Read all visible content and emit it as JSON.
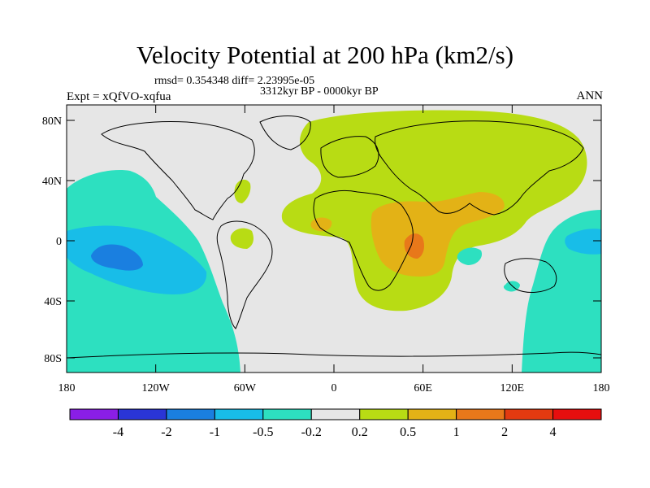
{
  "title": "Velocity Potential at 200 hPa (km2/s)",
  "stats": "rmsd= 0.354348 diff= 2.23995e-05",
  "period": "3312kyr BP - 0000kyr BP",
  "experiment": "Expt = xQfVO-xqfua",
  "season": "ANN",
  "lat_ticks": [
    "80N",
    "40N",
    "0",
    "40S",
    "80S"
  ],
  "lon_ticks": [
    "180",
    "120W",
    "60W",
    "0",
    "60E",
    "120E",
    "180"
  ],
  "colorbar": {
    "labels": [
      "-4",
      "-2",
      "-1",
      "-0.5",
      "-0.2",
      "0.2",
      "0.5",
      "1",
      "2",
      "4"
    ],
    "colors": [
      "#8a1ee6",
      "#2a35d6",
      "#1a7fe0",
      "#18bde8",
      "#2de0c0",
      "#e6e6e6",
      "#b8dc14",
      "#e3b216",
      "#e8781a",
      "#e33a10",
      "#e60e0e"
    ]
  },
  "palette": {
    "background": "#e6e6e6",
    "cyan": "#2de0c0",
    "sky": "#18bde8",
    "blue": "#1a7fe0",
    "green": "#b8dc14",
    "gold": "#e3b216",
    "orange": "#e8781a"
  }
}
